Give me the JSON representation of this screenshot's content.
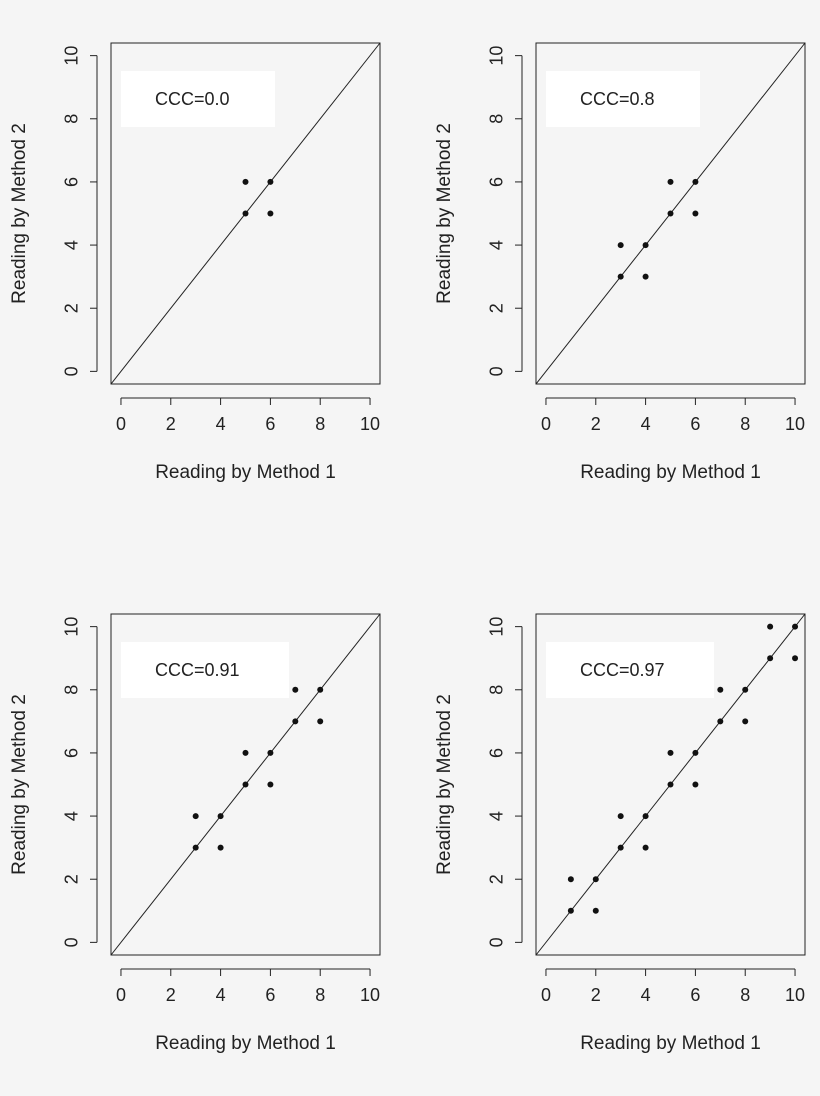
{
  "chart_data": [
    {
      "type": "scatter",
      "xlabel": "Reading by Method 1",
      "ylabel": "Reading by Method 2",
      "annotation": "CCC=0.0",
      "xlim": [
        -0.4,
        10.4
      ],
      "ylim": [
        -0.4,
        10.4
      ],
      "xticks": [
        0,
        2,
        4,
        6,
        8,
        10
      ],
      "yticks": [
        0,
        2,
        4,
        6,
        8,
        10
      ],
      "reference_line": "identity (y = x)",
      "points": [
        [
          5,
          6
        ],
        [
          6,
          6
        ],
        [
          5,
          5
        ],
        [
          6,
          5
        ]
      ]
    },
    {
      "type": "scatter",
      "xlabel": "Reading by Method 1",
      "ylabel": "Reading by Method 2",
      "annotation": "CCC=0.8",
      "xlim": [
        -0.4,
        10.4
      ],
      "ylim": [
        -0.4,
        10.4
      ],
      "xticks": [
        0,
        2,
        4,
        6,
        8,
        10
      ],
      "yticks": [
        0,
        2,
        4,
        6,
        8,
        10
      ],
      "reference_line": "identity (y = x)",
      "points": [
        [
          5,
          6
        ],
        [
          6,
          6
        ],
        [
          5,
          5
        ],
        [
          6,
          5
        ],
        [
          3,
          4
        ],
        [
          4,
          4
        ],
        [
          3,
          3
        ],
        [
          4,
          3
        ]
      ]
    },
    {
      "type": "scatter",
      "xlabel": "Reading by Method 1",
      "ylabel": "Reading by Method 2",
      "annotation": "CCC=0.91",
      "xlim": [
        -0.4,
        10.4
      ],
      "ylim": [
        -0.4,
        10.4
      ],
      "xticks": [
        0,
        2,
        4,
        6,
        8,
        10
      ],
      "yticks": [
        0,
        2,
        4,
        6,
        8,
        10
      ],
      "reference_line": "identity (y = x)",
      "points": [
        [
          7,
          8
        ],
        [
          8,
          8
        ],
        [
          7,
          7
        ],
        [
          8,
          7
        ],
        [
          5,
          6
        ],
        [
          6,
          6
        ],
        [
          5,
          5
        ],
        [
          6,
          5
        ],
        [
          3,
          4
        ],
        [
          4,
          4
        ],
        [
          3,
          3
        ],
        [
          4,
          3
        ]
      ]
    },
    {
      "type": "scatter",
      "xlabel": "Reading by Method 1",
      "ylabel": "Reading by Method 2",
      "annotation": "CCC=0.97",
      "xlim": [
        -0.4,
        10.4
      ],
      "ylim": [
        -0.4,
        10.4
      ],
      "xticks": [
        0,
        2,
        4,
        6,
        8,
        10
      ],
      "yticks": [
        0,
        2,
        4,
        6,
        8,
        10
      ],
      "reference_line": "identity (y = x)",
      "points": [
        [
          9,
          10
        ],
        [
          10,
          10
        ],
        [
          9,
          9
        ],
        [
          10,
          9
        ],
        [
          7,
          8
        ],
        [
          8,
          8
        ],
        [
          7,
          7
        ],
        [
          8,
          7
        ],
        [
          5,
          6
        ],
        [
          6,
          6
        ],
        [
          5,
          5
        ],
        [
          6,
          5
        ],
        [
          3,
          4
        ],
        [
          4,
          4
        ],
        [
          3,
          3
        ],
        [
          4,
          3
        ],
        [
          1,
          2
        ],
        [
          2,
          2
        ],
        [
          1,
          1
        ],
        [
          2,
          1
        ]
      ]
    }
  ]
}
